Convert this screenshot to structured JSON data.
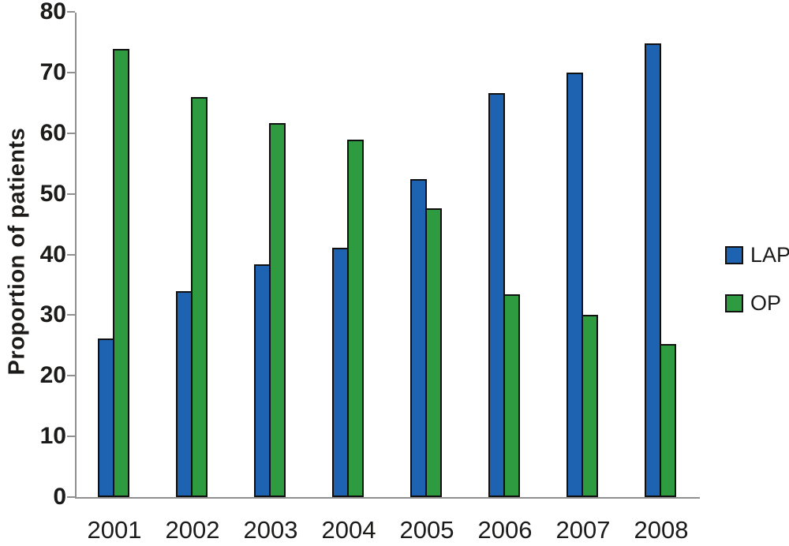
{
  "chart_data": {
    "type": "bar",
    "title": "",
    "xlabel": "",
    "ylabel": "Proportion of patients",
    "ylim": [
      0,
      80
    ],
    "ytick_interval": 10,
    "yticks": [
      0,
      10,
      20,
      30,
      40,
      50,
      60,
      70,
      80
    ],
    "categories": [
      "2001",
      "2002",
      "2003",
      "2004",
      "2005",
      "2006",
      "2007",
      "2008"
    ],
    "series": [
      {
        "name": "LAP",
        "color": "#1e63b1",
        "values": [
          26.1,
          34.0,
          38.4,
          41.1,
          52.4,
          66.6,
          70.0,
          74.8
        ]
      },
      {
        "name": "OP",
        "color": "#2f9b41",
        "values": [
          73.9,
          66.0,
          61.6,
          58.9,
          47.6,
          33.4,
          30.0,
          25.2
        ]
      }
    ],
    "legend_position": "right",
    "grid": false
  },
  "colors": {
    "axis": "#8f8f8f",
    "text": "#1c1b1a",
    "bar_border": "#101010",
    "background": "#ffffff"
  }
}
